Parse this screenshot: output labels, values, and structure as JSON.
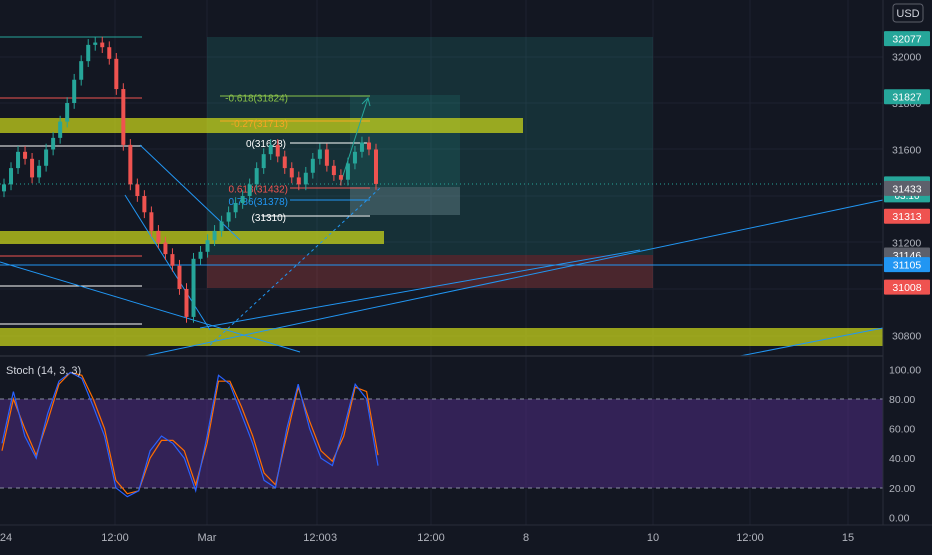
{
  "currency": "USD",
  "indicator_label": "Stoch (14, 3, 3)",
  "colors": {
    "background": "#131722",
    "up_candle": "#26a69a",
    "down_candle": "#ef5350",
    "zone_yellow": "#c6d21b",
    "k_line": "#2962ff",
    "d_line": "#ff6d00",
    "stoch_band": "#4a2a7a",
    "trendline": "#2196f3",
    "target_zone": "#26a69a",
    "stop_zone": "#ef5350",
    "fib_gold": "#f5a623",
    "fib_green": "#8bc34a",
    "fib_red": "#ef5350",
    "fib_blue": "#2196f3"
  },
  "price_axis": {
    "ticks": [
      "32000",
      "31800",
      "31600",
      "31400",
      "31200",
      "31000",
      "30800"
    ],
    "ylim": [
      30700,
      32150
    ]
  },
  "stoch_axis": {
    "ticks": [
      "100.00",
      "80.00",
      "60.00",
      "40.00",
      "20.00",
      "0.00"
    ],
    "ylim": [
      -4,
      104
    ]
  },
  "time_axis": {
    "ticks": [
      "24",
      "12:00",
      "Mar",
      "12:00",
      "3",
      "12:00",
      "8",
      "10",
      "12:00",
      "15"
    ]
  },
  "price_labels": [
    {
      "price": 32077,
      "text": "32077",
      "color": "#26a69a"
    },
    {
      "price": 31827,
      "text": "31827",
      "color": "#26a69a"
    },
    {
      "price": 31452,
      "text": "31452",
      "color": "#26a69a",
      "sub": "03:10"
    },
    {
      "price": 31433,
      "text": "31433",
      "color": "#5d606b"
    },
    {
      "price": 31313,
      "text": "31313",
      "color": "#ef5350"
    },
    {
      "price": 31146,
      "text": "31146",
      "color": "#5d606b"
    },
    {
      "price": 31105,
      "text": "31105",
      "color": "#2196f3"
    },
    {
      "price": 31008,
      "text": "31008",
      "color": "#ef5350"
    }
  ],
  "fib_labels": [
    {
      "text": "-0.618(31824)",
      "price": 31824,
      "color": "#8bc34a"
    },
    {
      "text": "-0.27(31713)",
      "price": 31713,
      "color": "#f5a623"
    },
    {
      "text": "0(31628)",
      "price": 31628,
      "color": "#ffffff"
    },
    {
      "text": "0.618(31432)",
      "price": 31432,
      "color": "#ef5350"
    },
    {
      "text": "0.786(31378)",
      "price": 31378,
      "color": "#2196f3"
    },
    {
      "text": "(31310)",
      "price": 31310,
      "color": "#ffffff"
    }
  ],
  "chart_data": {
    "type": "line",
    "series": [
      {
        "values": [
          31450,
          31520,
          31590,
          31560,
          31480,
          31530,
          31600,
          31650,
          31720,
          31800,
          31900,
          31980,
          32050,
          32060,
          32040,
          31990,
          31860,
          31620,
          31450,
          31400,
          31330,
          31250,
          31200,
          31150,
          31100,
          31000,
          30880,
          31130,
          31160,
          31210,
          31250,
          31290,
          31330,
          31370,
          31400,
          31450,
          31520,
          31580,
          31620,
          31570,
          31520,
          31480,
          31450,
          31500,
          31560,
          31600,
          31530,
          31490,
          31470,
          31540,
          31590,
          31630,
          31600,
          31452
        ]
      },
      {
        "values": [
          50,
          85,
          55,
          40,
          70,
          92,
          98,
          94,
          75,
          55,
          20,
          14,
          18,
          45,
          55,
          50,
          40,
          18,
          55,
          96,
          90,
          70,
          50,
          25,
          20,
          60,
          90,
          60,
          40,
          35,
          60,
          90,
          80,
          35
        ]
      },
      {
        "values": [
          45,
          80,
          60,
          42,
          65,
          90,
          98,
          96,
          80,
          60,
          25,
          16,
          18,
          40,
          52,
          52,
          45,
          22,
          50,
          92,
          92,
          75,
          55,
          30,
          22,
          55,
          88,
          65,
          45,
          38,
          55,
          88,
          85,
          42
        ]
      }
    ],
    "ylim": [
      30700,
      32150
    ],
    "grid": true
  }
}
